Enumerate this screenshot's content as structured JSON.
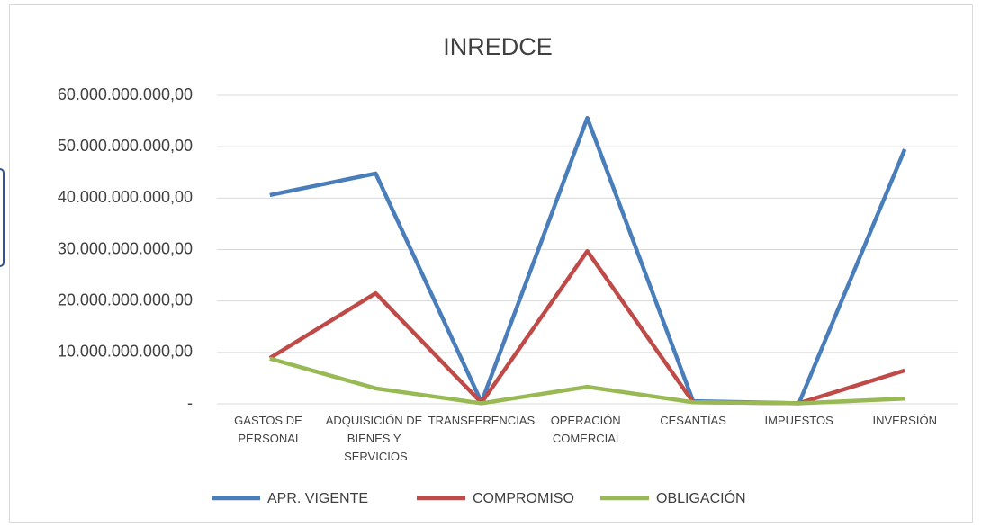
{
  "chart_data": {
    "type": "line",
    "title": "INREDCE",
    "categories": [
      "GASTOS DE PERSONAL",
      "ADQUISICIÓN DE BIENES Y SERVICIOS",
      "TRANSFERENCIAS",
      "OPERACIÓN COMERCIAL",
      "CESANTÍAS",
      "IMPUESTOS",
      "INVERSIÓN"
    ],
    "series": [
      {
        "name": "APR. VIGENTE",
        "color": "#4a7ebb",
        "values": [
          40600000000,
          44800000000,
          300000000,
          55600000000,
          500000000,
          100000000,
          49500000000
        ]
      },
      {
        "name": "COMPROMISO",
        "color": "#be4b48",
        "values": [
          8900000000,
          21500000000,
          200000000,
          29700000000,
          300000000,
          100000000,
          6500000000
        ]
      },
      {
        "name": "OBLIGACIÓN",
        "color": "#98b954",
        "values": [
          8800000000,
          3000000000,
          100000000,
          3300000000,
          300000000,
          100000000,
          1000000000
        ]
      }
    ],
    "ylim": [
      0,
      60000000000
    ],
    "yticks": [
      {
        "value": 0,
        "label": "-"
      },
      {
        "value": 10000000000,
        "label": "10.000.000.000,00"
      },
      {
        "value": 20000000000,
        "label": "20.000.000.000,00"
      },
      {
        "value": 30000000000,
        "label": "30.000.000.000,00"
      },
      {
        "value": 40000000000,
        "label": "40.000.000.000,00"
      },
      {
        "value": 50000000000,
        "label": "50.000.000.000,00"
      },
      {
        "value": 60000000000,
        "label": "60.000.000.000,00"
      }
    ],
    "grid": true,
    "legend": "bottom"
  }
}
